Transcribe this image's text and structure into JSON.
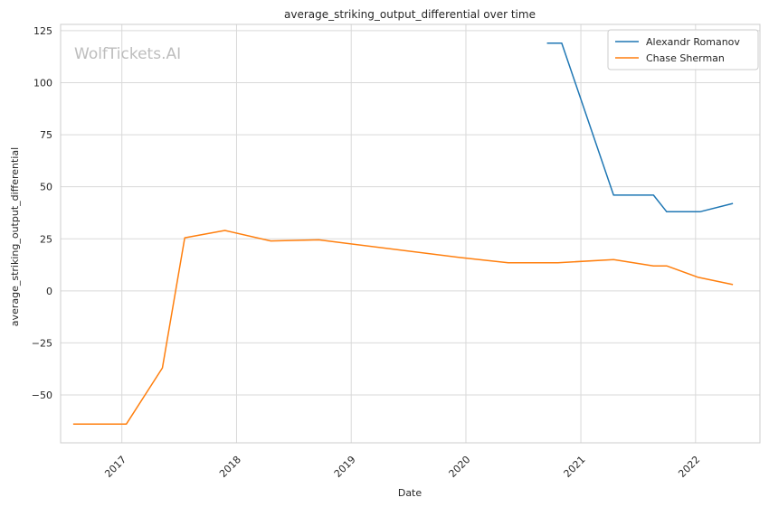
{
  "chart_data": {
    "type": "line",
    "title": "average_striking_output_differential over time",
    "xlabel": "Date",
    "ylabel": "average_striking_output_differential",
    "watermark": "WolfTickets.AI",
    "x_ticks": [
      "2017",
      "2018",
      "2019",
      "2020",
      "2021",
      "2022"
    ],
    "y_ticks": [
      125,
      100,
      75,
      50,
      25,
      0,
      -25,
      -50
    ],
    "y_tick_labels": [
      "125",
      "100",
      "75",
      "50",
      "25",
      "0",
      "−25",
      "−50"
    ],
    "xlim": [
      "2016-06-20",
      "2022-07-25"
    ],
    "ylim": [
      -73,
      128
    ],
    "grid": true,
    "legend_position": "top-right",
    "series": [
      {
        "name": "Alexandr Romanov",
        "color": "#1f77b4",
        "points": [
          {
            "x": "2020-09-15",
            "y": 119
          },
          {
            "x": "2020-11-01",
            "y": 119
          },
          {
            "x": "2021-04-15",
            "y": 46
          },
          {
            "x": "2021-08-20",
            "y": 46
          },
          {
            "x": "2021-10-01",
            "y": 38
          },
          {
            "x": "2022-01-15",
            "y": 38
          },
          {
            "x": "2022-04-30",
            "y": 42
          }
        ]
      },
      {
        "name": "Chase Sherman",
        "color": "#ff7f0e",
        "points": [
          {
            "x": "2016-07-30",
            "y": -64
          },
          {
            "x": "2017-01-15",
            "y": -64
          },
          {
            "x": "2017-05-10",
            "y": -37
          },
          {
            "x": "2017-07-20",
            "y": 25.5
          },
          {
            "x": "2017-11-25",
            "y": 29
          },
          {
            "x": "2018-04-20",
            "y": 24
          },
          {
            "x": "2018-09-20",
            "y": 24.5
          },
          {
            "x": "2019-12-15",
            "y": 16
          },
          {
            "x": "2020-05-15",
            "y": 13.5
          },
          {
            "x": "2020-10-20",
            "y": 13.5
          },
          {
            "x": "2021-04-15",
            "y": 15
          },
          {
            "x": "2021-08-20",
            "y": 12
          },
          {
            "x": "2021-10-01",
            "y": 12
          },
          {
            "x": "2022-01-10",
            "y": 6.5
          },
          {
            "x": "2022-04-30",
            "y": 3
          }
        ]
      }
    ]
  }
}
